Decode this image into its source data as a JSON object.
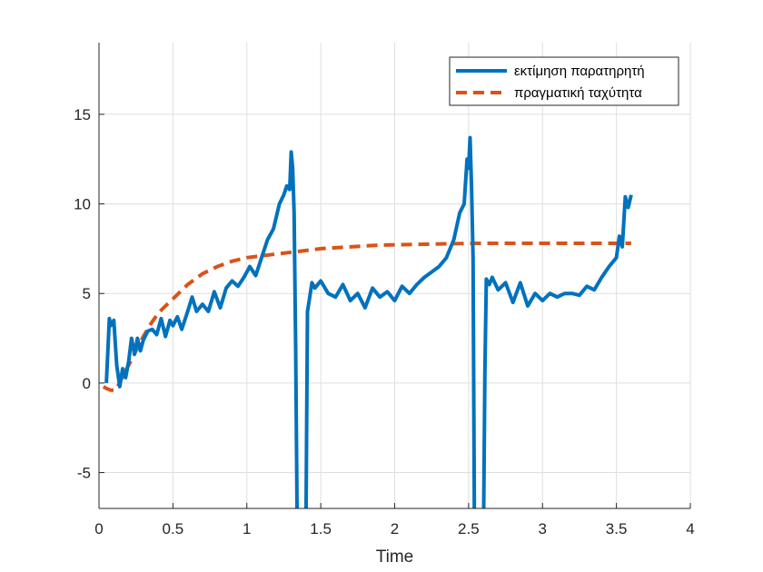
{
  "chart_data": {
    "type": "line",
    "title": "",
    "xlabel": "Time",
    "ylabel": "",
    "xlim": [
      0,
      4
    ],
    "ylim": [
      -7,
      19
    ],
    "xticks": [
      0,
      0.5,
      1,
      1.5,
      2,
      2.5,
      3,
      3.5,
      4
    ],
    "yticks": [
      -5,
      0,
      5,
      10,
      15
    ],
    "xtick_labels": [
      "0",
      "0.5",
      "1",
      "1.5",
      "2",
      "2.5",
      "3",
      "3.5",
      "4"
    ],
    "ytick_labels": [
      "-5",
      "0",
      "5",
      "10",
      "15"
    ],
    "grid": true,
    "legend_position": "top-right",
    "series": [
      {
        "name": "εκτίμηση παρατηρητή",
        "color": "#0072BD",
        "style": "solid",
        "x": [
          0.05,
          0.07,
          0.08,
          0.1,
          0.12,
          0.14,
          0.16,
          0.18,
          0.2,
          0.22,
          0.24,
          0.26,
          0.28,
          0.3,
          0.33,
          0.36,
          0.39,
          0.42,
          0.45,
          0.48,
          0.5,
          0.53,
          0.56,
          0.6,
          0.63,
          0.66,
          0.7,
          0.74,
          0.78,
          0.82,
          0.86,
          0.9,
          0.94,
          0.98,
          1.02,
          1.06,
          1.1,
          1.14,
          1.18,
          1.22,
          1.25,
          1.27,
          1.29,
          1.3,
          1.31,
          1.32,
          1.33,
          1.34,
          1.35,
          1.36,
          1.4,
          1.41,
          1.42,
          1.44,
          1.46,
          1.5,
          1.55,
          1.6,
          1.65,
          1.7,
          1.75,
          1.8,
          1.85,
          1.9,
          1.95,
          2.0,
          2.05,
          2.1,
          2.15,
          2.2,
          2.25,
          2.3,
          2.35,
          2.4,
          2.44,
          2.47,
          2.49,
          2.5,
          2.51,
          2.52,
          2.53,
          2.54,
          2.6,
          2.61,
          2.62,
          2.64,
          2.66,
          2.7,
          2.75,
          2.8,
          2.85,
          2.9,
          2.95,
          3.0,
          3.05,
          3.1,
          3.15,
          3.2,
          3.25,
          3.3,
          3.35,
          3.4,
          3.45,
          3.5,
          3.52,
          3.54,
          3.56,
          3.58,
          3.6
        ],
        "y": [
          0,
          3.6,
          3.2,
          3.5,
          1.0,
          -0.2,
          0.8,
          0.3,
          1.2,
          2.5,
          1.6,
          2.5,
          1.8,
          2.4,
          2.9,
          3.0,
          2.7,
          3.6,
          2.6,
          3.5,
          3.2,
          3.7,
          3.0,
          4.0,
          4.8,
          4.0,
          4.4,
          4.0,
          5.1,
          4.2,
          5.3,
          5.7,
          5.4,
          5.9,
          6.5,
          6.0,
          7.0,
          8.0,
          8.6,
          10.0,
          10.5,
          11.0,
          10.8,
          12.9,
          12.0,
          9.5,
          2.0,
          -7.5,
          -9.0,
          -9.5,
          -7.5,
          4.0,
          4.5,
          5.6,
          5.3,
          5.7,
          5.0,
          4.8,
          5.5,
          4.6,
          5.0,
          4.2,
          5.3,
          4.8,
          5.1,
          4.6,
          5.4,
          5.0,
          5.5,
          5.9,
          6.2,
          6.5,
          7.0,
          8.0,
          9.5,
          10.0,
          12.5,
          12.0,
          13.7,
          11.0,
          7.0,
          -9.0,
          -9.0,
          0.5,
          5.8,
          5.5,
          5.9,
          5.2,
          5.6,
          4.5,
          5.6,
          4.3,
          5.0,
          4.6,
          5.0,
          4.8,
          5.0,
          5.0,
          4.9,
          5.4,
          5.2,
          5.9,
          6.5,
          7.0,
          8.2,
          7.6,
          10.4,
          9.8,
          10.5
        ]
      },
      {
        "name": "πραγματική ταχύτητα",
        "color": "#D95319",
        "style": "dashed",
        "x": [
          0.03,
          0.05,
          0.08,
          0.1,
          0.12,
          0.15,
          0.2,
          0.25,
          0.3,
          0.35,
          0.4,
          0.45,
          0.5,
          0.55,
          0.6,
          0.7,
          0.8,
          0.9,
          1.0,
          1.1,
          1.2,
          1.3,
          1.4,
          1.5,
          1.6,
          1.7,
          1.8,
          1.9,
          2.0,
          2.2,
          2.4,
          2.6,
          2.8,
          3.0,
          3.2,
          3.4,
          3.6
        ],
        "y": [
          -0.2,
          -0.3,
          -0.4,
          -0.4,
          -0.3,
          0.2,
          1.0,
          1.8,
          2.6,
          3.3,
          3.9,
          4.3,
          4.7,
          5.1,
          5.5,
          6.1,
          6.5,
          6.8,
          7.0,
          7.1,
          7.2,
          7.3,
          7.4,
          7.5,
          7.55,
          7.6,
          7.65,
          7.7,
          7.72,
          7.75,
          7.78,
          7.8,
          7.8,
          7.8,
          7.8,
          7.8,
          7.8
        ]
      }
    ]
  }
}
